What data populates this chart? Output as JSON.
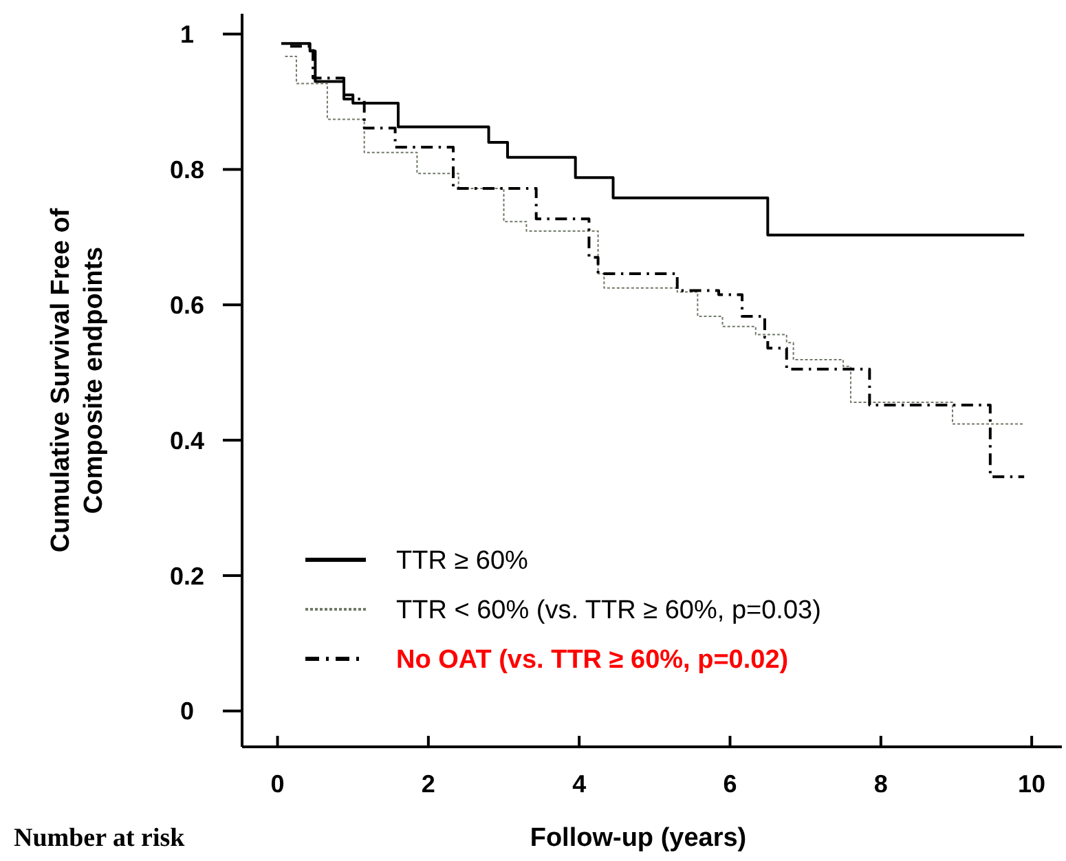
{
  "chart_data": {
    "type": "step",
    "xlabel": "Follow-up (years)",
    "ylabel": "Cumulative Survival Free of Composite endpoints",
    "annotations": [
      "Number  at risk"
    ],
    "xlim": [
      -0.47,
      10.4
    ],
    "ylim": [
      -0.053,
      1.03
    ],
    "xticks": [
      0,
      2,
      4,
      6,
      8,
      10
    ],
    "yticks": [
      0,
      0.2,
      0.4,
      0.6,
      0.8,
      1
    ],
    "grid": false,
    "legend": "bottom left",
    "marker": "none",
    "series": [
      {
        "name": "TTR ≥ 60%",
        "color": "#000000",
        "line_style": "solid",
        "x": [
          0.05,
          0.43,
          0.5,
          0.88,
          1.0,
          1.6,
          2.8,
          3.05,
          3.95,
          4.45,
          6.5,
          9.9
        ],
        "values": [
          0.986,
          0.975,
          0.93,
          0.91,
          0.898,
          0.863,
          0.84,
          0.818,
          0.788,
          0.758,
          0.703,
          0.703
        ]
      },
      {
        "name": "TTR < 60% (vs. TTR ≥ 60%, p=0.03)",
        "color": "#707a68",
        "line_style": "dotted",
        "x": [
          0.1,
          0.25,
          0.66,
          1.15,
          1.85,
          2.4,
          3.0,
          3.3,
          4.25,
          4.33,
          5.3,
          5.57,
          5.9,
          6.34,
          6.75,
          6.84,
          7.5,
          7.6,
          8.95,
          9.9
        ],
        "values": [
          0.967,
          0.927,
          0.874,
          0.825,
          0.794,
          0.772,
          0.723,
          0.709,
          0.646,
          0.625,
          0.619,
          0.583,
          0.568,
          0.556,
          0.544,
          0.519,
          0.509,
          0.456,
          0.424,
          0.424
        ]
      },
      {
        "name": "No OAT (vs. TTR ≥ 60%, p=0.02)",
        "color": "#000000",
        "line_style": "dashed",
        "x": [
          0.09,
          0.47,
          0.88,
          1.15,
          1.56,
          2.33,
          3.43,
          4.13,
          4.25,
          5.3,
          5.85,
          6.16,
          6.46,
          6.5,
          6.75,
          7.85,
          9.45,
          9.9
        ],
        "values": [
          0.982,
          0.935,
          0.904,
          0.861,
          0.833,
          0.772,
          0.727,
          0.67,
          0.646,
          0.621,
          0.615,
          0.583,
          0.552,
          0.536,
          0.505,
          0.452,
          0.346,
          0.346
        ]
      }
    ]
  }
}
